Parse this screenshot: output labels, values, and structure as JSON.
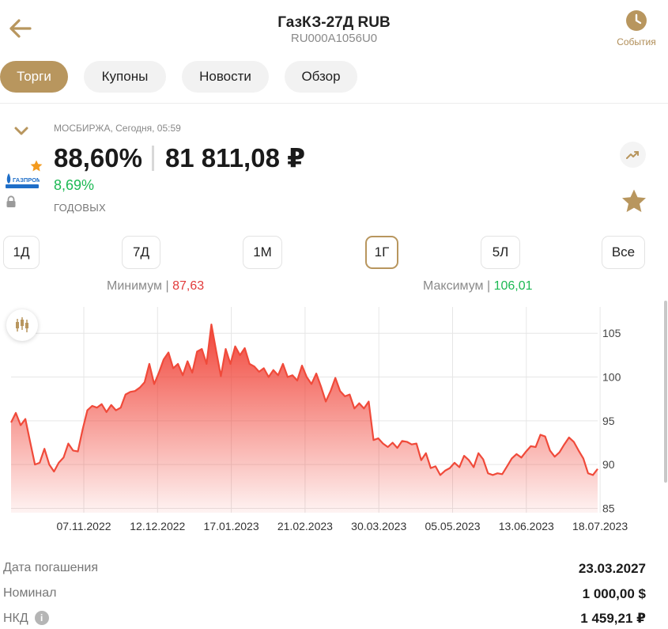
{
  "header": {
    "title": "ГазКЗ-27Д RUB",
    "isin": "RU000A1056U0",
    "events_label": "События"
  },
  "tabs": [
    {
      "label": "Торги",
      "active": true
    },
    {
      "label": "Купоны",
      "active": false
    },
    {
      "label": "Новости",
      "active": false
    },
    {
      "label": "Обзор",
      "active": false
    }
  ],
  "quote": {
    "exchange_line": "МОСБИРЖА, Сегодня, 05:59",
    "price_percent": "88,60%",
    "price_rub": "81 811,08 ₽",
    "yield": "8,69%",
    "yield_label": "ГОДОВЫХ"
  },
  "periods": [
    {
      "label": "1Д",
      "active": false
    },
    {
      "label": "7Д",
      "active": false
    },
    {
      "label": "1М",
      "active": false
    },
    {
      "label": "1Г",
      "active": true
    },
    {
      "label": "5Л",
      "active": false
    },
    {
      "label": "Все",
      "active": false
    }
  ],
  "range": {
    "min_label": "Минимум",
    "min_value": "87,63",
    "max_label": "Максимум",
    "max_value": "106,01"
  },
  "colors": {
    "accent": "#b8965e",
    "line": "#f04a3a",
    "up": "#1db954",
    "down": "#e23b3b"
  },
  "icons": {
    "back": "arrow-left-icon",
    "events": "clock-icon",
    "collapse": "chevron-down-icon",
    "trend": "trend-icon",
    "favorite": "star-icon",
    "candles": "candlestick-icon",
    "lock": "lock-icon",
    "info": "info-icon"
  },
  "chart_data": {
    "type": "area",
    "x_ticks": [
      "07.11.2022",
      "12.12.2022",
      "17.01.2023",
      "21.02.2023",
      "30.03.2023",
      "05.05.2023",
      "13.06.2023",
      "18.07.2023"
    ],
    "y_ticks": [
      85,
      90,
      95,
      100,
      105
    ],
    "ylim": [
      84.5,
      108
    ],
    "grid": true,
    "series": [
      {
        "values": [
          94.8,
          95.9,
          94.5,
          95.2,
          92.6,
          90.0,
          90.2,
          91.8,
          90.0,
          89.2,
          90.2,
          90.8,
          92.4,
          91.6,
          91.5,
          94.0,
          96.2,
          96.7,
          96.5,
          96.9,
          96.0,
          96.8,
          96.2,
          96.5,
          98.0,
          98.3,
          98.4,
          98.8,
          99.4,
          101.5,
          99.2,
          100.5,
          102.0,
          102.8,
          101.0,
          101.5,
          100.2,
          101.8,
          100.5,
          102.9,
          103.2,
          101.5,
          106.0,
          103.0,
          100.1,
          103.2,
          101.5,
          103.5,
          102.5,
          103.3,
          101.5,
          101.2,
          100.6,
          101.0,
          100.0,
          100.8,
          100.2,
          101.5,
          100.0,
          100.2,
          99.6,
          101.3,
          100.0,
          99.2,
          100.4,
          98.9,
          97.2,
          98.4,
          99.9,
          98.4,
          97.8,
          98.0,
          96.4,
          97.0,
          96.4,
          97.2,
          92.8,
          93.0,
          92.4,
          92.0,
          92.5,
          91.9,
          92.7,
          92.6,
          92.3,
          92.4,
          90.5,
          91.3,
          89.6,
          89.8,
          88.8,
          89.3,
          89.6,
          90.2,
          89.7,
          91.0,
          90.5,
          89.7,
          91.3,
          90.6,
          89.0,
          88.8,
          89.0,
          88.9,
          89.8,
          90.7,
          91.2,
          90.8,
          91.5,
          92.1,
          92.0,
          93.4,
          93.2,
          91.6,
          90.9,
          91.4,
          92.3,
          93.1,
          92.6,
          91.6,
          90.7,
          89.0,
          88.8,
          89.5
        ]
      }
    ]
  },
  "details": [
    {
      "key": "Дата погашения",
      "value": "23.03.2027"
    },
    {
      "key": "Номинал",
      "value": "1 000,00 $"
    },
    {
      "key": "НКД",
      "value": "1 459,21 ₽"
    }
  ]
}
